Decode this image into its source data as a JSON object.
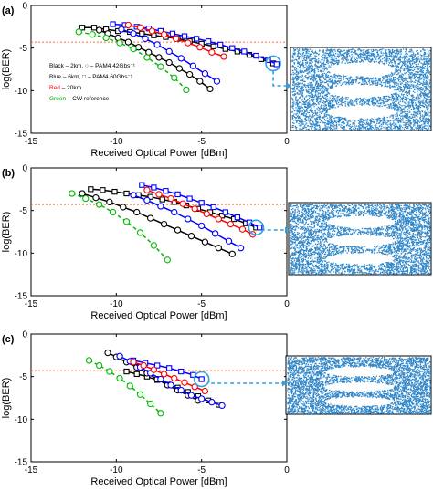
{
  "chart_data": [
    {
      "panel_label": "(a)",
      "type": "line",
      "xlabel": "Received Optical Power [dBm]",
      "ylabel": "log(BER)",
      "xlim": [
        -15,
        0
      ],
      "ylim": [
        -15,
        0
      ],
      "x_ticks": [
        "-15",
        "-10",
        "-5",
        "0"
      ],
      "y_ticks": [
        "0",
        "-5",
        "-10",
        "-15"
      ],
      "threshold_log_ber": -4.3,
      "legend": [
        "Black – 2km, ○ – PAM4 42Gbs⁻¹",
        "Blue – 6km, □ – PAM4 60Gbs⁻¹",
        "Red – 20km",
        "Green – CW reference"
      ],
      "series": [
        {
          "color": "#000000",
          "marker": "square",
          "dash": false,
          "x": [
            -12.0,
            -11.3,
            -10.6,
            -9.9,
            -9.2,
            -8.5,
            -7.8,
            -7.1,
            -6.4,
            -5.7,
            -5.0,
            -4.3,
            -3.6,
            -2.9,
            -2.2,
            -1.5,
            -0.8
          ],
          "y": [
            -2.6,
            -2.6,
            -2.8,
            -3.0,
            -3.1,
            -3.3,
            -3.5,
            -3.7,
            -3.9,
            -4.2,
            -4.5,
            -4.8,
            -5.1,
            -5.4,
            -5.8,
            -6.3,
            -6.8
          ]
        },
        {
          "color": "#000000",
          "marker": "circle",
          "dash": false,
          "x": [
            -11.0,
            -10.5,
            -9.9,
            -9.3,
            -8.7,
            -8.1,
            -7.5,
            -6.9,
            -6.3,
            -5.7,
            -5.1,
            -4.5
          ],
          "y": [
            -2.9,
            -3.3,
            -3.8,
            -4.3,
            -4.9,
            -5.5,
            -6.1,
            -6.7,
            -7.4,
            -8.1,
            -8.9,
            -9.8
          ]
        },
        {
          "color": "#0000ff",
          "marker": "square",
          "dash": false,
          "x": [
            -10.2,
            -9.5,
            -8.8,
            -8.1,
            -7.4,
            -6.7,
            -6.0,
            -5.3,
            -4.6,
            -3.9,
            -3.2,
            -2.5,
            -1.8,
            -1.1,
            -0.6
          ],
          "y": [
            -2.2,
            -2.3,
            -2.5,
            -2.7,
            -3.0,
            -3.3,
            -3.6,
            -3.9,
            -4.2,
            -4.6,
            -5.0,
            -5.4,
            -5.9,
            -6.4,
            -6.9
          ]
        },
        {
          "color": "#0000ff",
          "marker": "circle",
          "dash": false,
          "x": [
            -9.7,
            -9.0,
            -8.3,
            -7.6,
            -6.9,
            -6.2,
            -5.5,
            -4.8,
            -4.1
          ],
          "y": [
            -2.8,
            -3.3,
            -3.9,
            -4.6,
            -5.4,
            -6.2,
            -7.1,
            -8.0,
            -8.9
          ]
        },
        {
          "color": "#ff0000",
          "marker": "circle",
          "dash": false,
          "x": [
            -9.3,
            -8.6,
            -7.9,
            -7.2,
            -6.5,
            -5.8,
            -5.1,
            -4.4,
            -3.7
          ],
          "y": [
            -2.3,
            -2.6,
            -3.0,
            -3.4,
            -3.9,
            -4.4,
            -4.9,
            -5.5,
            -6.0
          ]
        },
        {
          "color": "#00bb00",
          "marker": "circle",
          "dash": true,
          "x": [
            -12.2,
            -11.4,
            -10.6,
            -9.8,
            -9.0,
            -8.2,
            -7.4,
            -6.6,
            -5.9
          ],
          "y": [
            -3.1,
            -3.4,
            -3.8,
            -4.4,
            -5.1,
            -6.1,
            -7.2,
            -8.5,
            -9.9
          ]
        }
      ],
      "eye_diagram": true
    },
    {
      "panel_label": "(b)",
      "type": "line",
      "xlabel": "Received Optical Power [dBm]",
      "ylabel": "log(BER)",
      "xlim": [
        -15,
        0
      ],
      "ylim": [
        -15,
        0
      ],
      "x_ticks": [
        "-15",
        "-10",
        "-5",
        "0"
      ],
      "y_ticks": [
        "0",
        "-5",
        "-10",
        "-15"
      ],
      "threshold_log_ber": -4.3,
      "series": [
        {
          "color": "#000000",
          "marker": "square",
          "dash": false,
          "x": [
            -11.5,
            -10.8,
            -10.1,
            -9.4,
            -8.7,
            -8.0,
            -7.3,
            -6.6,
            -5.9,
            -5.2,
            -4.5,
            -3.8,
            -3.1,
            -2.4,
            -1.8
          ],
          "y": [
            -2.5,
            -2.6,
            -2.8,
            -3.0,
            -3.2,
            -3.4,
            -3.7,
            -4.0,
            -4.4,
            -4.8,
            -5.2,
            -5.6,
            -6.0,
            -6.5,
            -7.0
          ]
        },
        {
          "color": "#000000",
          "marker": "circle",
          "dash": false,
          "x": [
            -12.0,
            -11.2,
            -10.4,
            -9.6,
            -8.8,
            -8.0,
            -7.2,
            -6.4,
            -5.6,
            -4.8,
            -4.0,
            -3.2
          ],
          "y": [
            -3.0,
            -3.5,
            -4.0,
            -4.6,
            -5.2,
            -5.9,
            -6.6,
            -7.3,
            -8.0,
            -8.7,
            -9.4,
            -10.1
          ]
        },
        {
          "color": "#0000ff",
          "marker": "square",
          "dash": false,
          "x": [
            -8.5,
            -7.8,
            -7.1,
            -6.4,
            -5.7,
            -5.0,
            -4.3,
            -3.6,
            -2.9,
            -2.2,
            -1.6
          ],
          "y": [
            -2.0,
            -2.3,
            -2.7,
            -3.1,
            -3.6,
            -4.1,
            -4.6,
            -5.2,
            -5.8,
            -6.4,
            -7.0
          ]
        },
        {
          "color": "#0000ff",
          "marker": "circle",
          "dash": false,
          "x": [
            -9.0,
            -8.2,
            -7.4,
            -6.6,
            -5.8,
            -5.0,
            -4.2,
            -3.4,
            -2.7
          ],
          "y": [
            -3.2,
            -3.8,
            -4.5,
            -5.2,
            -6.0,
            -6.8,
            -7.7,
            -8.6,
            -9.4
          ]
        },
        {
          "color": "#ff0000",
          "marker": "circle",
          "dash": false,
          "x": [
            -8.2,
            -7.5,
            -6.8,
            -6.1,
            -5.4,
            -4.7,
            -4.0,
            -3.3,
            -2.6,
            -2.0
          ],
          "y": [
            -2.6,
            -3.1,
            -3.6,
            -4.2,
            -4.8,
            -5.4,
            -6.0,
            -6.6,
            -7.2,
            -7.8
          ]
        },
        {
          "color": "#00bb00",
          "marker": "circle",
          "dash": true,
          "x": [
            -12.6,
            -11.8,
            -11.0,
            -10.2,
            -9.4,
            -8.6,
            -7.8,
            -7.0
          ],
          "y": [
            -3.0,
            -3.6,
            -4.3,
            -5.2,
            -6.3,
            -7.6,
            -9.1,
            -10.8
          ]
        }
      ],
      "eye_diagram": true
    },
    {
      "panel_label": "(c)",
      "type": "line",
      "xlabel": "Received Optical Power [dBm]",
      "ylabel": "log(BER)",
      "xlim": [
        -15,
        0
      ],
      "ylim": [
        -15,
        0
      ],
      "x_ticks": [
        "-15",
        "-10",
        "-5",
        "0"
      ],
      "y_ticks": [
        "0",
        "-5",
        "-10",
        "-15"
      ],
      "threshold_log_ber": -4.3,
      "series": [
        {
          "color": "#000000",
          "marker": "square",
          "dash": false,
          "x": [
            -9.4,
            -8.8,
            -8.2,
            -7.6,
            -7.0,
            -6.4,
            -5.8,
            -5.2,
            -4.6,
            -4.0
          ],
          "y": [
            -4.4,
            -4.7,
            -5.0,
            -5.4,
            -5.8,
            -6.3,
            -6.8,
            -7.3,
            -7.8,
            -8.3
          ]
        },
        {
          "color": "#000000",
          "marker": "circle",
          "dash": false,
          "x": [
            -10.5,
            -10.0,
            -9.4,
            -8.8,
            -8.2,
            -7.6,
            -7.0,
            -6.4,
            -5.8,
            -5.2
          ],
          "y": [
            -2.2,
            -2.7,
            -3.3,
            -3.9,
            -4.6,
            -5.3,
            -6.0,
            -6.6,
            -7.2,
            -7.8
          ]
        },
        {
          "color": "#0000ff",
          "marker": "square",
          "dash": false,
          "x": [
            -9.0,
            -8.3,
            -7.6,
            -6.9,
            -6.2,
            -5.5,
            -5.0
          ],
          "y": [
            -3.1,
            -3.4,
            -3.7,
            -4.0,
            -4.4,
            -4.8,
            -5.3
          ]
        },
        {
          "color": "#0000ff",
          "marker": "circle",
          "dash": false,
          "x": [
            -9.8,
            -9.2,
            -8.6,
            -8.0,
            -7.4,
            -6.8,
            -6.2,
            -5.6,
            -5.0,
            -4.4,
            -3.8
          ],
          "y": [
            -2.6,
            -3.2,
            -3.9,
            -4.6,
            -5.3,
            -6.0,
            -6.6,
            -7.2,
            -7.6,
            -8.0,
            -8.4
          ]
        },
        {
          "color": "#ff0000",
          "marker": "circle",
          "dash": false,
          "x": [
            -9.0,
            -8.4,
            -7.8,
            -7.2,
            -6.6,
            -6.0,
            -5.4,
            -4.8
          ],
          "y": [
            -3.3,
            -3.7,
            -4.2,
            -4.7,
            -5.2,
            -5.7,
            -6.2,
            -6.7
          ]
        },
        {
          "color": "#00bb00",
          "marker": "circle",
          "dash": true,
          "x": [
            -11.6,
            -11.0,
            -10.4,
            -9.8,
            -9.2,
            -8.6,
            -8.0,
            -7.4
          ],
          "y": [
            -3.1,
            -3.7,
            -4.4,
            -5.2,
            -6.1,
            -7.1,
            -8.2,
            -9.3
          ]
        }
      ],
      "eye_diagram": true
    }
  ]
}
